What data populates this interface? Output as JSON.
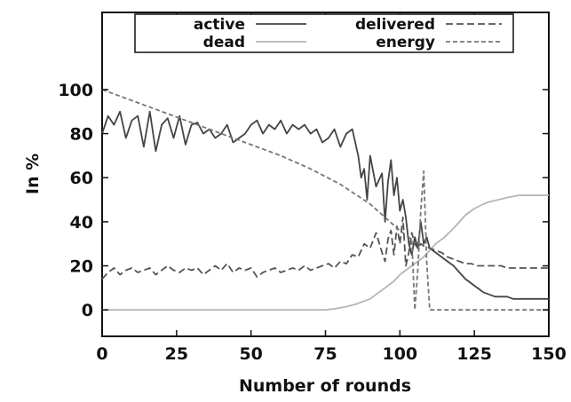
{
  "chart_data": {
    "type": "line",
    "title": "",
    "xlabel": "Number of rounds",
    "ylabel": "In %",
    "xlim": [
      0,
      150
    ],
    "ylim": [
      -12,
      135
    ],
    "xticks": [
      "0",
      "25",
      "50",
      "75",
      "100",
      "125",
      "150"
    ],
    "xtick_values": [
      0,
      25,
      50,
      75,
      100,
      125,
      150
    ],
    "yticks": [
      "0",
      "20",
      "40",
      "60",
      "80",
      "100"
    ],
    "ytick_values": [
      0,
      20,
      40,
      60,
      80,
      100
    ],
    "grid": false,
    "legend_position": "top",
    "series": [
      {
        "name": "active",
        "style": "solid",
        "color": "#444444",
        "x": [
          0,
          2,
          4,
          6,
          8,
          10,
          12,
          14,
          16,
          18,
          20,
          22,
          24,
          26,
          28,
          30,
          32,
          34,
          36,
          38,
          40,
          42,
          44,
          46,
          48,
          50,
          52,
          54,
          56,
          58,
          60,
          62,
          64,
          66,
          68,
          70,
          72,
          74,
          76,
          78,
          80,
          82,
          84,
          86,
          87,
          88,
          89,
          90,
          92,
          94,
          95,
          96,
          97,
          98,
          99,
          100,
          101,
          102,
          103,
          104,
          105,
          106,
          107,
          108,
          109,
          110,
          112,
          114,
          116,
          118,
          120,
          122,
          124,
          126,
          128,
          130,
          132,
          134,
          136,
          138,
          140,
          142,
          144,
          146,
          148,
          150
        ],
        "y": [
          80,
          88,
          84,
          90,
          78,
          86,
          88,
          74,
          90,
          72,
          84,
          87,
          78,
          88,
          75,
          84,
          85,
          80,
          82,
          78,
          80,
          84,
          76,
          78,
          80,
          84,
          86,
          80,
          84,
          82,
          86,
          80,
          84,
          82,
          84,
          80,
          82,
          76,
          78,
          82,
          74,
          80,
          82,
          70,
          60,
          64,
          50,
          70,
          56,
          62,
          40,
          58,
          68,
          52,
          60,
          45,
          50,
          42,
          30,
          25,
          33,
          28,
          40,
          30,
          33,
          28,
          26,
          24,
          22,
          20,
          17,
          14,
          12,
          10,
          8,
          7,
          6,
          6,
          6,
          5,
          5,
          5,
          5,
          5,
          5,
          5
        ]
      },
      {
        "name": "dead",
        "style": "solid",
        "color": "#b5b5b5",
        "x": [
          0,
          10,
          20,
          30,
          40,
          50,
          60,
          70,
          75,
          78,
          80,
          82,
          85,
          88,
          90,
          92,
          95,
          98,
          100,
          102,
          105,
          108,
          110,
          112,
          115,
          118,
          120,
          122,
          125,
          128,
          130,
          133,
          136,
          140,
          145,
          150
        ],
        "y": [
          0,
          0,
          0,
          0,
          0,
          0,
          0,
          0,
          0,
          0.5,
          1,
          1.5,
          2.5,
          4,
          5,
          7,
          10,
          13,
          16,
          18,
          21,
          24,
          27,
          30,
          33,
          37,
          40,
          43,
          46,
          48,
          49,
          50,
          51,
          52,
          52,
          52
        ]
      },
      {
        "name": "delivered",
        "style": "dashed",
        "color": "#555555",
        "x": [
          0,
          2,
          4,
          6,
          8,
          10,
          12,
          14,
          16,
          18,
          20,
          22,
          24,
          26,
          28,
          30,
          32,
          34,
          36,
          38,
          40,
          42,
          44,
          46,
          48,
          50,
          52,
          54,
          56,
          58,
          60,
          62,
          64,
          66,
          68,
          70,
          72,
          74,
          76,
          78,
          80,
          82,
          84,
          86,
          88,
          90,
          92,
          94,
          95,
          96,
          97,
          98,
          99,
          100,
          101,
          102,
          103,
          104,
          105,
          106,
          107,
          108,
          110,
          112,
          114,
          116,
          118,
          120,
          122,
          124,
          126,
          128,
          130,
          132,
          134,
          136,
          138,
          140,
          142,
          144,
          146,
          148,
          150
        ],
        "y": [
          14,
          17,
          19,
          16,
          18,
          19,
          17,
          18,
          19,
          16,
          18,
          20,
          18,
          17,
          19,
          18,
          19,
          16,
          18,
          20,
          18,
          21,
          17,
          19,
          18,
          19,
          15,
          17,
          18,
          19,
          17,
          18,
          19,
          18,
          20,
          18,
          19,
          20,
          21,
          19,
          22,
          21,
          25,
          24,
          30,
          28,
          35,
          26,
          22,
          32,
          36,
          25,
          38,
          30,
          42,
          20,
          26,
          35,
          30,
          28,
          30,
          29,
          28,
          27,
          26,
          24,
          23,
          22,
          21,
          21,
          20,
          20,
          20,
          20,
          20,
          19,
          19,
          19,
          19,
          19,
          19,
          19,
          19
        ]
      },
      {
        "name": "energy",
        "style": "dashed",
        "color": "#777777",
        "x": [
          0,
          10,
          20,
          30,
          40,
          50,
          60,
          70,
          80,
          90,
          95,
          100,
          104,
          105,
          106,
          107,
          108,
          109,
          110,
          111,
          115,
          120,
          130,
          140,
          150
        ],
        "y": [
          100,
          95,
          90,
          85,
          80,
          75,
          70,
          64,
          57,
          48,
          42,
          36,
          32,
          0,
          18,
          45,
          63,
          22,
          0,
          0,
          0,
          0,
          0,
          0,
          0
        ]
      }
    ]
  }
}
